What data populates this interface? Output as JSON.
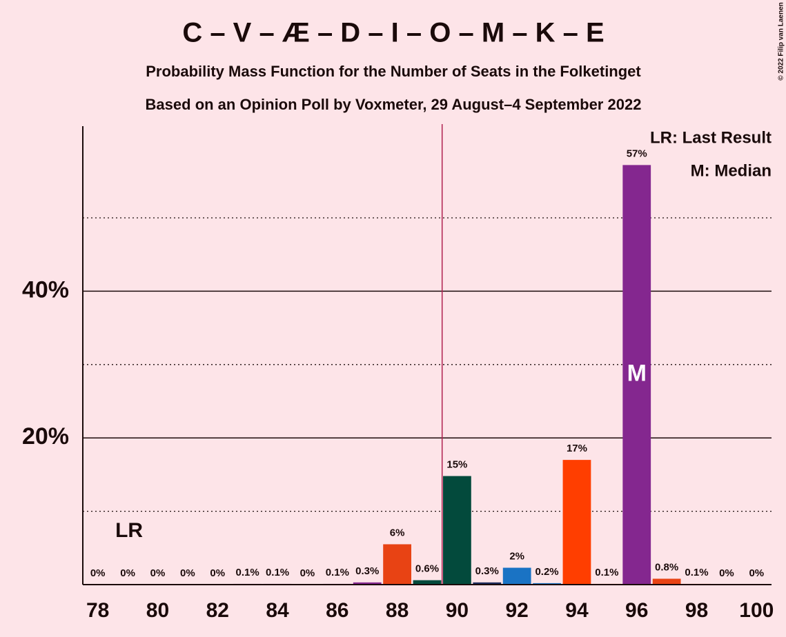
{
  "chart_data": {
    "type": "bar",
    "title": "C – V – Æ – D – I – O – M – K – E",
    "subtitle": "Probability Mass Function for the Number of Seats in the Folketinget",
    "subtitle2": "Based on an Opinion Poll by Voxmeter, 29 August–4 September 2022",
    "copyright": "© 2022 Filip van Laenen",
    "x": [
      78,
      79,
      80,
      81,
      82,
      83,
      84,
      85,
      86,
      87,
      88,
      89,
      90,
      91,
      92,
      93,
      94,
      95,
      96,
      97,
      98,
      99,
      100
    ],
    "values": [
      0,
      0,
      0,
      0,
      0,
      0.1,
      0.1,
      0,
      0.1,
      0.3,
      5.5,
      0.6,
      14.8,
      0.3,
      2.3,
      0.2,
      17.0,
      0.1,
      57.2,
      0.8,
      0.1,
      0,
      0
    ],
    "value_labels": [
      "0%",
      "0%",
      "0%",
      "0%",
      "0%",
      "0.1%",
      "0.1%",
      "0%",
      "0.1%",
      "0.3%",
      "6%",
      "0.6%",
      "15%",
      "0.3%",
      "2%",
      "0.2%",
      "17%",
      "0.1%",
      "57%",
      "0.8%",
      "0.1%",
      "0%",
      "0%"
    ],
    "colors": [
      "#84278f",
      "#84278f",
      "#84278f",
      "#84278f",
      "#84278f",
      "#84278f",
      "#84278f",
      "#84278f",
      "#84278f",
      "#84278f",
      "#e84314",
      "#034a3c",
      "#034a3c",
      "#1b2a5a",
      "#1a73c4",
      "#1a73c4",
      "#ff3e00",
      "#ff3e00",
      "#84278f",
      "#e84314",
      "#e84314",
      "#e84314",
      "#e84314"
    ],
    "xlim": [
      77.5,
      100.5
    ],
    "xticks": [
      78,
      80,
      82,
      84,
      86,
      88,
      90,
      92,
      94,
      96,
      98,
      100
    ],
    "ylim": [
      0,
      62.5
    ],
    "yticks": [
      {
        "value": 20,
        "label": "20%"
      },
      {
        "value": 40,
        "label": "40%"
      }
    ],
    "minor_gridlines": [
      10,
      30,
      50
    ],
    "majority_line": 89.5,
    "last_result": {
      "x": 79,
      "label": "LR"
    },
    "median": {
      "x": 96,
      "label": "M"
    },
    "legend": [
      "LR: Last Result",
      "M: Median"
    ]
  }
}
